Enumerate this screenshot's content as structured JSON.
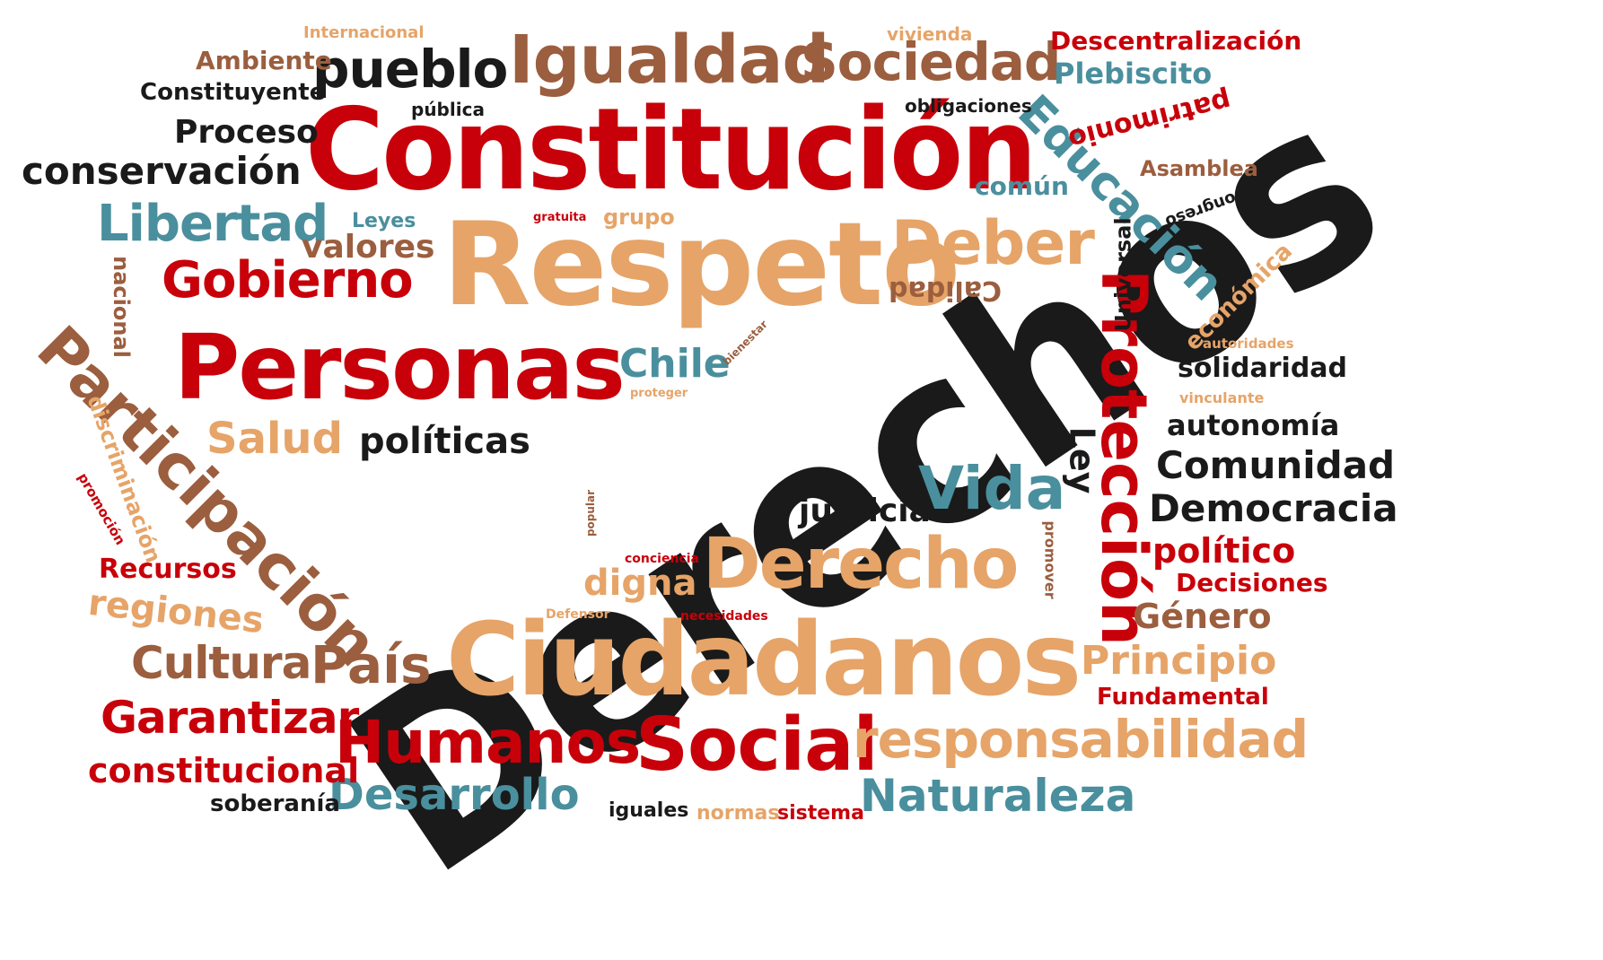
{
  "colors": {
    "red": "#c8000a",
    "black": "#1a1a1a",
    "brown": "#9b5e3e",
    "tan": "#e6a468",
    "teal": "#4a8f9d"
  },
  "words": {
    "derechos": "Derechos",
    "constitucion": "Constitución",
    "respeto": "Respeto",
    "ciudadanos": "Ciudadanos",
    "personas": "Personas",
    "derecho": "Derecho",
    "participacion": "Participación",
    "igualdad": "Igualdad",
    "social": "Social",
    "proteccion": "Protección",
    "educacion": "Educación",
    "humanos": "Humanos",
    "responsabilidad": "responsabilidad",
    "sociedad": "Sociedad",
    "deber": "Deber",
    "gobierno": "Gobierno",
    "vida": "Vida",
    "libertad": "Libertad",
    "pueblo": "pueblo",
    "pais": "País",
    "desarrollo": "Desarrollo",
    "naturaleza": "Naturaleza",
    "garantizar": "Garantizar",
    "cultura": "Cultura",
    "conservacion": "conservación",
    "comunidad": "Comunidad",
    "democracia": "Democracia",
    "salud": "Salud",
    "principio": "Principio",
    "politicas": "políticas",
    "constitucional": "constitucional",
    "regiones": "regiones",
    "chile": "Chile",
    "proceso": "Proceso",
    "valores": "valores",
    "justicia": "justicia",
    "digna": "digna",
    "politico": "político",
    "autonomia": "autonomía",
    "genero": "Género",
    "solidaridad": "solidaridad",
    "recursos": "Recursos",
    "plebiscito": "Plebiscito",
    "constituyente": "Constituyente",
    "descentralizacion": "Descentralización",
    "decisiones": "Decisiones",
    "fundamental": "Fundamental",
    "soberania": "soberanía",
    "ambiente": "Ambiente",
    "patrimonio": "patrimonio",
    "ley": "Ley",
    "calidad": "Calidad",
    "economica": "económica",
    "asamblea": "Asamblea",
    "comun": "común",
    "nacional": "nacional",
    "discriminacion": "discriminación",
    "universal": "Universal",
    "iguales": "iguales",
    "normas": "normas",
    "sistema": "sistema",
    "leyes": "Leyes",
    "grupo": "grupo",
    "obligaciones": "obligaciones",
    "publica": "pública",
    "vivienda": "vivienda",
    "internacional": "Internacional",
    "congreso": "Congreso",
    "gratuita": "gratuita",
    "bienestar": "bienestar",
    "proteger": "proteger",
    "autoridades": "autoridades",
    "vinculante": "vinculante",
    "promover": "promover",
    "popular": "popular",
    "conciencia": "conciencia",
    "defensor": "Defensor",
    "necesidades": "necesidades",
    "promocion": "promoción"
  }
}
